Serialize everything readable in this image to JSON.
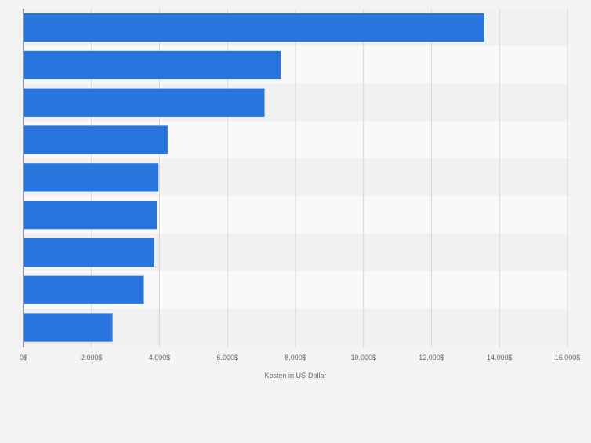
{
  "chart_data": {
    "type": "bar",
    "orientation": "horizontal",
    "title": "",
    "xlabel": "Kosten in US-Dollar",
    "ylabel": "",
    "categories": [
      "",
      "",
      "",
      "",
      "",
      "",
      "",
      "",
      ""
    ],
    "values": [
      13550,
      7570,
      7090,
      4240,
      3970,
      3920,
      3850,
      3540,
      2620
    ],
    "xlim": [
      0,
      16000
    ],
    "tick_values": [
      0,
      2000,
      4000,
      6000,
      8000,
      10000,
      12000,
      14000,
      16000
    ],
    "tick_labels": [
      "0$",
      "2.000$",
      "4.000$",
      "6.000$",
      "8.000$",
      "10.000$",
      "12.000$",
      "14.000$",
      "16.000$"
    ],
    "grid": true,
    "legend": "none",
    "colors": {
      "bar": "#2876dd",
      "background": "#f4f4f4",
      "band_dark": "#f1f1f1",
      "band_light": "#f9f9f9",
      "grid": "#d6d6d6",
      "axis": "#333333",
      "text": "#666666"
    }
  }
}
